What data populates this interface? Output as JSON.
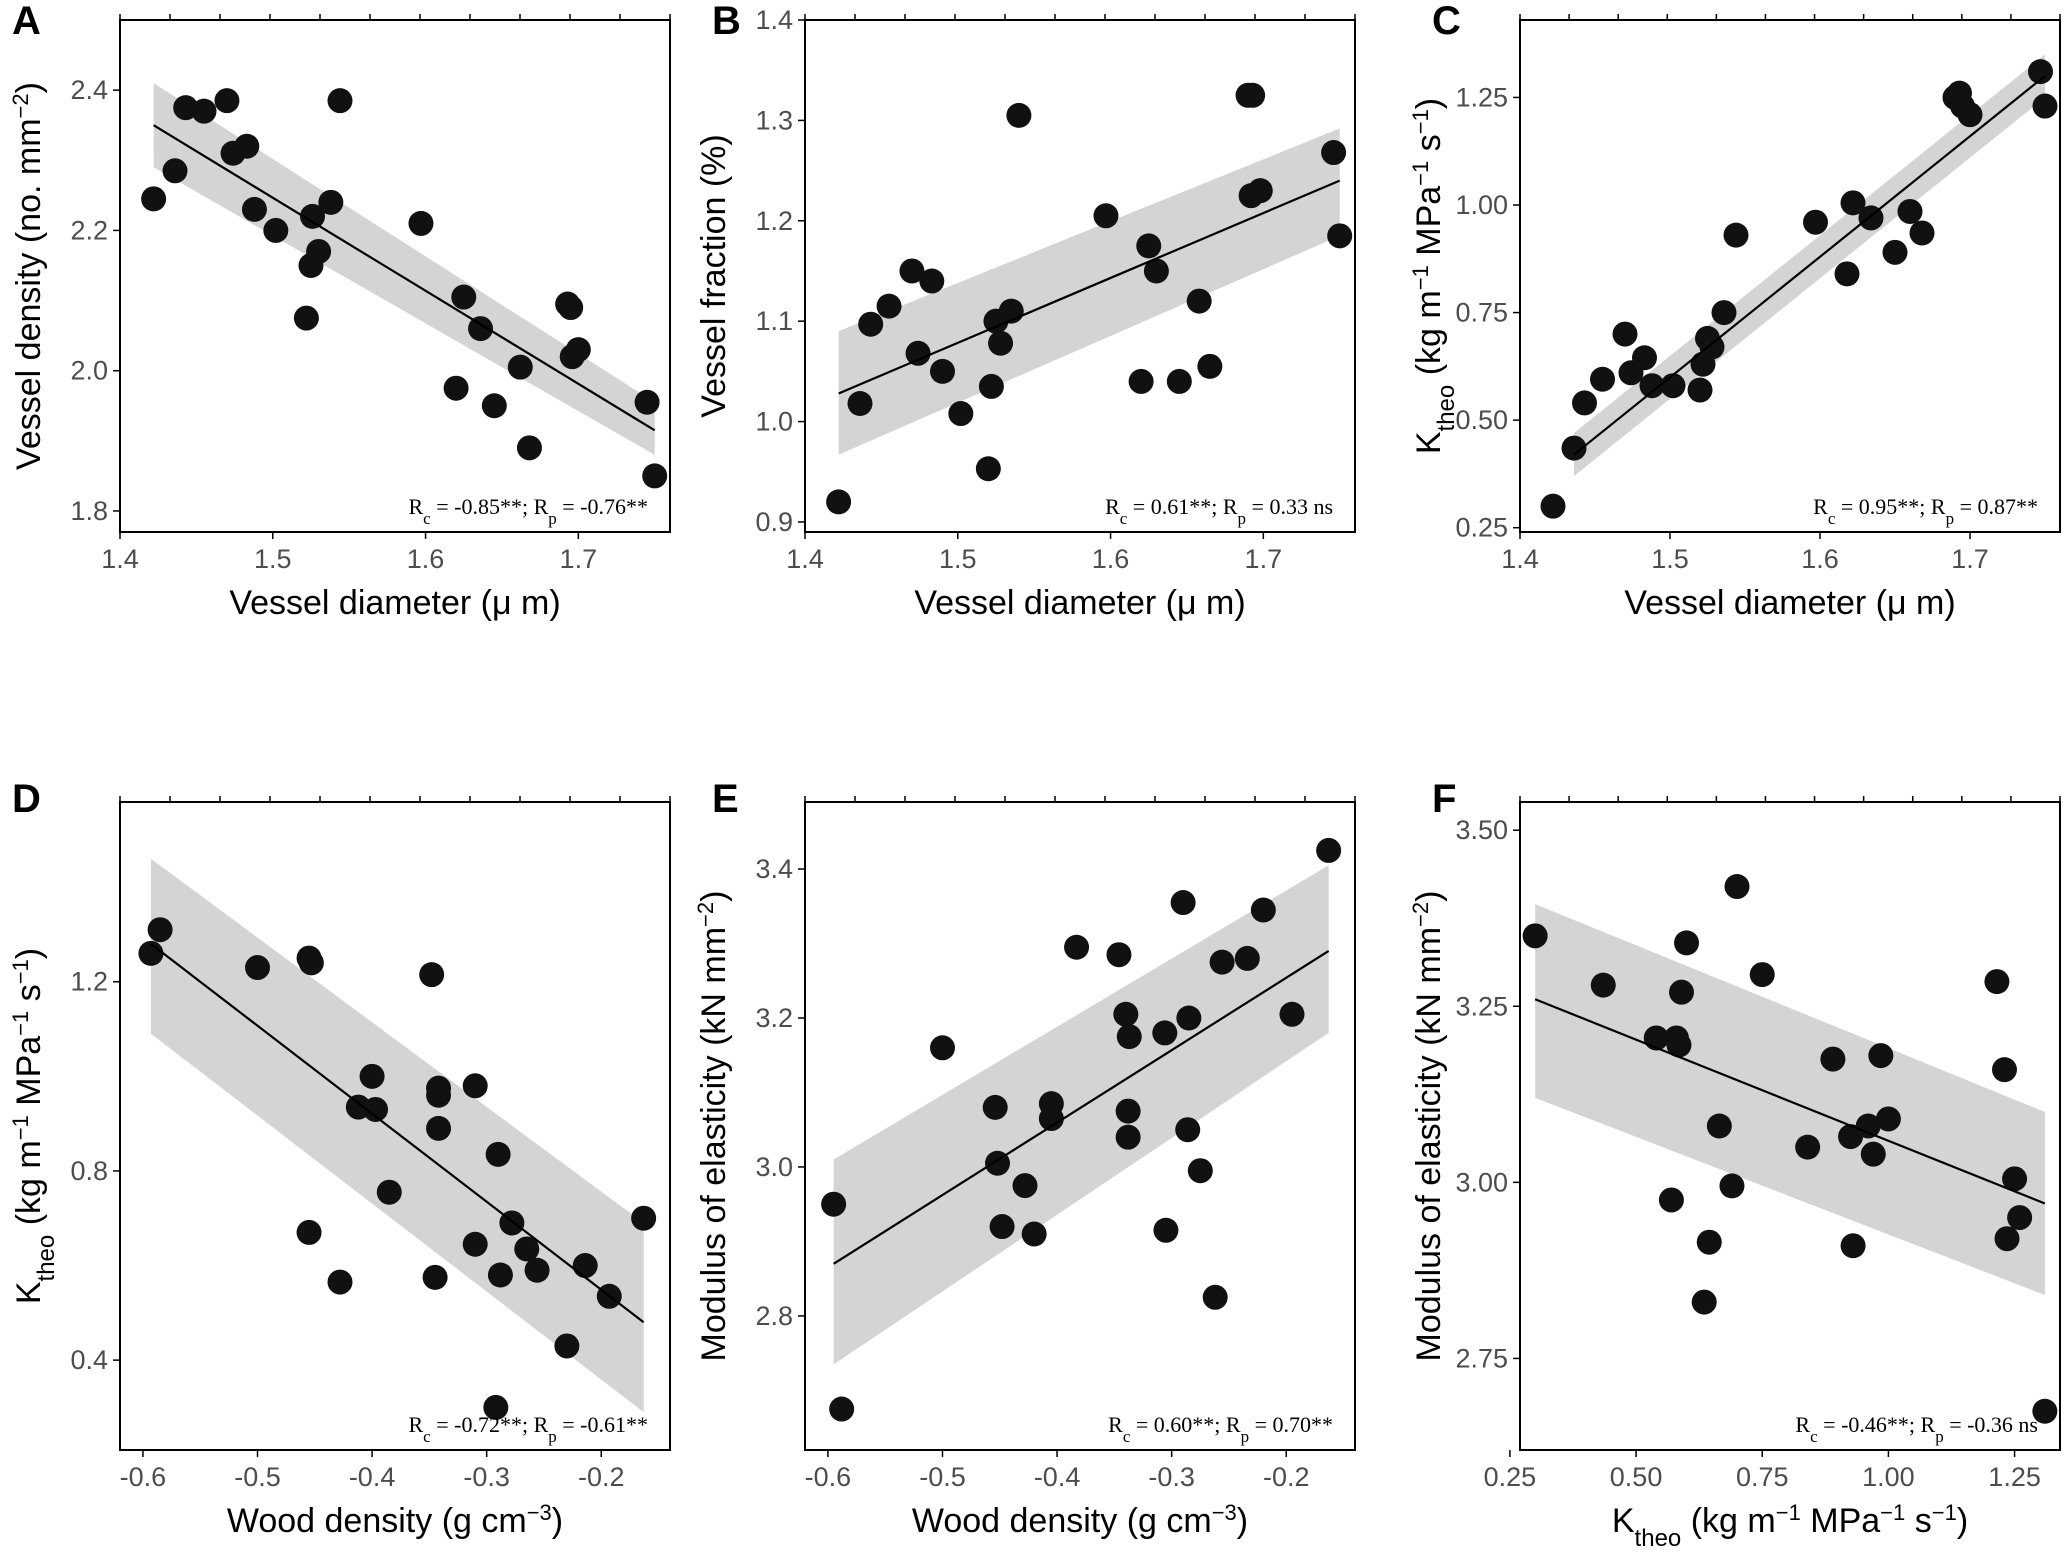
{
  "colors": {
    "point": "#111111",
    "band": "#cccccc",
    "line": "#000000",
    "frame": "#000000",
    "tick_text": "#4d4d4d"
  },
  "chart_data": [
    {
      "type": "scatter",
      "panel": "A",
      "xlabel": "Vessel diameter (μ m)",
      "ylabel": {
        "base": "Vessel density (no. mm",
        "sup": "−2",
        "tail": ")"
      },
      "xlim": [
        1.4,
        1.76
      ],
      "ylim": [
        1.77,
        2.5
      ],
      "xticks": [
        1.4,
        1.5,
        1.6,
        1.7
      ],
      "xtick_labels": [
        "1.4",
        "1.5",
        "1.6",
        "1.7"
      ],
      "yticks": [
        1.8,
        2.0,
        2.2,
        2.4
      ],
      "ytick_labels": [
        "1.8",
        "2.0",
        "2.2",
        "2.4"
      ],
      "fit": {
        "x": [
          1.422,
          1.75
        ],
        "y": [
          2.35,
          1.915
        ],
        "ci_lower": [
          2.29,
          1.88
        ],
        "ci_upper": [
          2.41,
          1.955
        ]
      },
      "stat": {
        "rc": "-0.85**",
        "rp": "-0.76**"
      },
      "points": [
        [
          1.422,
          2.245
        ],
        [
          1.436,
          2.285
        ],
        [
          1.443,
          2.375
        ],
        [
          1.455,
          2.37
        ],
        [
          1.47,
          2.385
        ],
        [
          1.474,
          2.31
        ],
        [
          1.483,
          2.32
        ],
        [
          1.488,
          2.23
        ],
        [
          1.502,
          2.2
        ],
        [
          1.522,
          2.075
        ],
        [
          1.525,
          2.15
        ],
        [
          1.526,
          2.22
        ],
        [
          1.53,
          2.17
        ],
        [
          1.538,
          2.24
        ],
        [
          1.544,
          2.385
        ],
        [
          1.597,
          2.21
        ],
        [
          1.62,
          1.975
        ],
        [
          1.625,
          2.105
        ],
        [
          1.636,
          2.06
        ],
        [
          1.645,
          1.95
        ],
        [
          1.662,
          2.005
        ],
        [
          1.668,
          1.89
        ],
        [
          1.693,
          2.095
        ],
        [
          1.695,
          2.09
        ],
        [
          1.696,
          2.02
        ],
        [
          1.7,
          2.03
        ],
        [
          1.745,
          1.955
        ],
        [
          1.75,
          1.85
        ]
      ]
    },
    {
      "type": "scatter",
      "panel": "B",
      "xlabel": "Vessel diameter (μ m)",
      "ylabel": {
        "base": "Vessel fraction (%)",
        "sup": "",
        "tail": ""
      },
      "xlim": [
        1.4,
        1.76
      ],
      "ylim": [
        0.89,
        1.4
      ],
      "xticks": [
        1.4,
        1.5,
        1.6,
        1.7
      ],
      "xtick_labels": [
        "1.4",
        "1.5",
        "1.6",
        "1.7"
      ],
      "yticks": [
        0.9,
        1.0,
        1.1,
        1.2,
        1.3,
        1.4
      ],
      "ytick_labels": [
        "0.9",
        "1.0",
        "1.1",
        "1.2",
        "1.3",
        "1.4"
      ],
      "fit": {
        "x": [
          1.422,
          1.75
        ],
        "y": [
          1.028,
          1.24
        ],
        "ci_lower": [
          0.967,
          1.185
        ],
        "ci_upper": [
          1.09,
          1.292
        ]
      },
      "stat": {
        "rc": "0.61**",
        "rp": "0.33 ns"
      },
      "points": [
        [
          1.422,
          0.92
        ],
        [
          1.436,
          1.018
        ],
        [
          1.443,
          1.097
        ],
        [
          1.455,
          1.115
        ],
        [
          1.47,
          1.15
        ],
        [
          1.474,
          1.068
        ],
        [
          1.483,
          1.14
        ],
        [
          1.49,
          1.05
        ],
        [
          1.502,
          1.008
        ],
        [
          1.52,
          0.953
        ],
        [
          1.522,
          1.035
        ],
        [
          1.525,
          1.1
        ],
        [
          1.528,
          1.078
        ],
        [
          1.535,
          1.11
        ],
        [
          1.54,
          1.305
        ],
        [
          1.597,
          1.205
        ],
        [
          1.62,
          1.04
        ],
        [
          1.625,
          1.175
        ],
        [
          1.63,
          1.15
        ],
        [
          1.645,
          1.04
        ],
        [
          1.658,
          1.12
        ],
        [
          1.665,
          1.055
        ],
        [
          1.69,
          1.325
        ],
        [
          1.693,
          1.325
        ],
        [
          1.692,
          1.225
        ],
        [
          1.698,
          1.23
        ],
        [
          1.746,
          1.268
        ],
        [
          1.75,
          1.185
        ]
      ]
    },
    {
      "type": "scatter",
      "panel": "C",
      "xlabel": "Vessel diameter (μ m)",
      "ylabel": {
        "base": "K",
        "sub": "theo",
        "mid": " (kg m",
        "sup1": "−1",
        "mid2": " MPa",
        "sup2": "−1",
        "mid3": " s",
        "sup3": "−1",
        "tail": ")"
      },
      "xlim": [
        1.4,
        1.76
      ],
      "ylim": [
        0.24,
        1.43
      ],
      "xticks": [
        1.4,
        1.5,
        1.6,
        1.7
      ],
      "xtick_labels": [
        "1.4",
        "1.5",
        "1.6",
        "1.7"
      ],
      "yticks": [
        0.25,
        0.5,
        0.75,
        1.0,
        1.25
      ],
      "ytick_labels": [
        "0.25",
        "0.50",
        "0.75",
        "1.00",
        "1.25"
      ],
      "fit": {
        "x": [
          1.436,
          1.75
        ],
        "y": [
          0.42,
          1.3
        ],
        "ci_lower": [
          0.37,
          1.25
        ],
        "ci_upper": [
          0.47,
          1.35
        ]
      },
      "stat": {
        "rc": "0.95**",
        "rp": "0.87**"
      },
      "points": [
        [
          1.422,
          0.3
        ],
        [
          1.436,
          0.435
        ],
        [
          1.443,
          0.54
        ],
        [
          1.455,
          0.595
        ],
        [
          1.47,
          0.7
        ],
        [
          1.474,
          0.61
        ],
        [
          1.483,
          0.645
        ],
        [
          1.488,
          0.58
        ],
        [
          1.502,
          0.58
        ],
        [
          1.52,
          0.57
        ],
        [
          1.522,
          0.63
        ],
        [
          1.525,
          0.69
        ],
        [
          1.528,
          0.67
        ],
        [
          1.536,
          0.75
        ],
        [
          1.544,
          0.93
        ],
        [
          1.597,
          0.96
        ],
        [
          1.618,
          0.84
        ],
        [
          1.622,
          1.005
        ],
        [
          1.634,
          0.97
        ],
        [
          1.65,
          0.89
        ],
        [
          1.66,
          0.985
        ],
        [
          1.668,
          0.935
        ],
        [
          1.69,
          1.25
        ],
        [
          1.693,
          1.26
        ],
        [
          1.695,
          1.23
        ],
        [
          1.7,
          1.21
        ],
        [
          1.747,
          1.31
        ],
        [
          1.75,
          1.23
        ]
      ]
    },
    {
      "type": "scatter",
      "panel": "D",
      "xlabel": {
        "base": "Wood density (g cm",
        "sup": "−3",
        "tail": ")"
      },
      "ylabel": {
        "base": "K",
        "sub": "theo",
        "mid": " (kg m",
        "sup1": "−1",
        "mid2": " MPa",
        "sup2": "−1",
        "mid3": " s",
        "sup3": "−1",
        "tail": ")"
      },
      "xlim": [
        -0.62,
        -0.14
      ],
      "ylim": [
        0.21,
        1.58
      ],
      "xticks": [
        -0.6,
        -0.5,
        -0.4,
        -0.3,
        -0.2
      ],
      "xtick_labels": [
        "-0.6",
        "-0.5",
        "-0.4",
        "-0.3",
        "-0.2"
      ],
      "yticks": [
        0.4,
        0.8,
        1.2
      ],
      "ytick_labels": [
        "0.4",
        "0.8",
        "1.2"
      ],
      "fit": {
        "x": [
          -0.593,
          -0.163
        ],
        "y": [
          1.28,
          0.48
        ],
        "ci_lower": [
          1.09,
          0.29
        ],
        "ci_upper": [
          1.46,
          0.69
        ]
      },
      "stat": {
        "rc": "-0.72**",
        "rp": "-0.61**"
      },
      "points": [
        [
          -0.593,
          1.26
        ],
        [
          -0.585,
          1.31
        ],
        [
          -0.5,
          1.23
        ],
        [
          -0.455,
          1.25
        ],
        [
          -0.453,
          1.24
        ],
        [
          -0.455,
          0.67
        ],
        [
          -0.428,
          0.565
        ],
        [
          -0.412,
          0.935
        ],
        [
          -0.4,
          1.0
        ],
        [
          -0.397,
          0.93
        ],
        [
          -0.385,
          0.755
        ],
        [
          -0.348,
          1.215
        ],
        [
          -0.342,
          0.975
        ],
        [
          -0.342,
          0.96
        ],
        [
          -0.342,
          0.89
        ],
        [
          -0.345,
          0.575
        ],
        [
          -0.31,
          0.98
        ],
        [
          -0.31,
          0.645
        ],
        [
          -0.29,
          0.835
        ],
        [
          -0.288,
          0.58
        ],
        [
          -0.292,
          0.3
        ],
        [
          -0.278,
          0.69
        ],
        [
          -0.265,
          0.635
        ],
        [
          -0.256,
          0.59
        ],
        [
          -0.23,
          0.43
        ],
        [
          -0.214,
          0.6
        ],
        [
          -0.193,
          0.535
        ],
        [
          -0.163,
          0.7
        ]
      ]
    },
    {
      "type": "scatter",
      "panel": "E",
      "xlabel": {
        "base": "Wood density (g cm",
        "sup": "−3",
        "tail": ")"
      },
      "ylabel": {
        "base": "Modulus of elasticity (kN mm",
        "sup": "−2",
        "tail": ")"
      },
      "xlim": [
        -0.62,
        -0.14
      ],
      "ylim": [
        2.62,
        3.49
      ],
      "xticks": [
        -0.6,
        -0.5,
        -0.4,
        -0.3,
        -0.2
      ],
      "xtick_labels": [
        "-0.6",
        "-0.5",
        "-0.4",
        "-0.3",
        "-0.2"
      ],
      "yticks": [
        2.8,
        3.0,
        3.2,
        3.4
      ],
      "ytick_labels": [
        "2.8",
        "3.0",
        "3.2",
        "3.4"
      ],
      "fit": {
        "x": [
          -0.595,
          -0.163
        ],
        "y": [
          2.87,
          3.29
        ],
        "ci_lower": [
          2.735,
          3.18
        ],
        "ci_upper": [
          3.01,
          3.405
        ]
      },
      "stat": {
        "rc": "0.60**",
        "rp": "0.70**"
      },
      "points": [
        [
          -0.595,
          2.95
        ],
        [
          -0.588,
          2.675
        ],
        [
          -0.5,
          3.16
        ],
        [
          -0.454,
          3.08
        ],
        [
          -0.452,
          3.005
        ],
        [
          -0.448,
          2.92
        ],
        [
          -0.428,
          2.975
        ],
        [
          -0.42,
          2.91
        ],
        [
          -0.405,
          3.085
        ],
        [
          -0.405,
          3.065
        ],
        [
          -0.383,
          3.295
        ],
        [
          -0.346,
          3.285
        ],
        [
          -0.34,
          3.205
        ],
        [
          -0.337,
          3.175
        ],
        [
          -0.338,
          3.075
        ],
        [
          -0.338,
          3.04
        ],
        [
          -0.306,
          3.18
        ],
        [
          -0.305,
          2.915
        ],
        [
          -0.29,
          3.355
        ],
        [
          -0.286,
          3.05
        ],
        [
          -0.285,
          3.2
        ],
        [
          -0.275,
          2.995
        ],
        [
          -0.262,
          2.825
        ],
        [
          -0.256,
          3.275
        ],
        [
          -0.234,
          3.28
        ],
        [
          -0.22,
          3.345
        ],
        [
          -0.195,
          3.205
        ],
        [
          -0.163,
          3.425
        ]
      ]
    },
    {
      "type": "scatter",
      "panel": "F",
      "xlabel": {
        "base": "K",
        "sub": "theo",
        "mid": " (kg m",
        "sup1": "−1",
        "mid2": " MPa",
        "sup2": "−1",
        "mid3": " s",
        "sup3": "−1",
        "tail": ")"
      },
      "ylabel": {
        "base": "Modulus of elasticity (kN mm",
        "sup": "−2",
        "tail": ")"
      },
      "xlim": [
        0.27,
        1.34
      ],
      "ylim": [
        2.62,
        3.54
      ],
      "xticks": [
        0.25,
        0.5,
        0.75,
        1.0,
        1.25
      ],
      "xtick_labels": [
        "0.25",
        "0.50",
        "0.75",
        "1.00",
        "1.25"
      ],
      "yticks": [
        2.75,
        3.0,
        3.25,
        3.5
      ],
      "ytick_labels": [
        "2.75",
        "3.00",
        "3.25",
        "3.50"
      ],
      "fit": {
        "x": [
          0.3,
          1.31
        ],
        "y": [
          3.26,
          2.97
        ],
        "ci_lower": [
          3.12,
          2.84
        ],
        "ci_upper": [
          3.395,
          3.1
        ]
      },
      "stat": {
        "rc": "-0.46**",
        "rp": "-0.36 ns"
      },
      "points": [
        [
          0.3,
          3.35
        ],
        [
          0.435,
          3.28
        ],
        [
          0.54,
          3.205
        ],
        [
          0.57,
          2.975
        ],
        [
          0.58,
          3.205
        ],
        [
          0.585,
          3.195
        ],
        [
          0.59,
          3.27
        ],
        [
          0.6,
          3.34
        ],
        [
          0.635,
          2.83
        ],
        [
          0.645,
          2.915
        ],
        [
          0.665,
          3.08
        ],
        [
          0.69,
          2.995
        ],
        [
          0.7,
          3.42
        ],
        [
          0.75,
          3.295
        ],
        [
          0.84,
          3.05
        ],
        [
          0.89,
          3.175
        ],
        [
          0.925,
          3.065
        ],
        [
          0.93,
          2.91
        ],
        [
          0.96,
          3.08
        ],
        [
          0.97,
          3.04
        ],
        [
          0.985,
          3.18
        ],
        [
          1.0,
          3.09
        ],
        [
          1.215,
          3.285
        ],
        [
          1.23,
          3.16
        ],
        [
          1.235,
          2.92
        ],
        [
          1.25,
          3.005
        ],
        [
          1.26,
          2.95
        ],
        [
          1.31,
          2.675
        ]
      ]
    }
  ]
}
